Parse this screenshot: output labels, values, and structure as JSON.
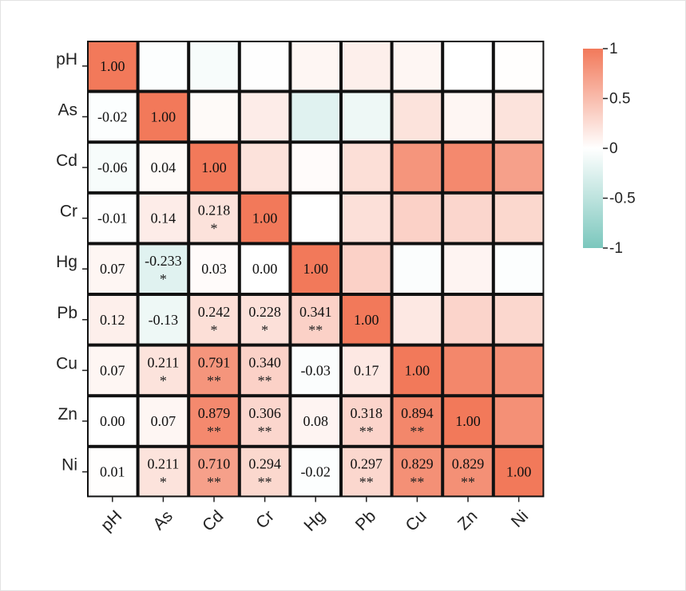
{
  "chart_data": {
    "type": "heatmap",
    "variables": [
      "pH",
      "As",
      "Cd",
      "Cr",
      "Hg",
      "Pb",
      "Cu",
      "Zn",
      "Ni"
    ],
    "matrix": [
      [
        1.0,
        -0.02,
        -0.06,
        -0.01,
        0.07,
        0.12,
        0.07,
        0.0,
        0.01
      ],
      [
        -0.02,
        1.0,
        0.04,
        0.14,
        -0.233,
        -0.13,
        0.211,
        0.07,
        0.211
      ],
      [
        -0.06,
        0.04,
        1.0,
        0.218,
        0.03,
        0.242,
        0.791,
        0.879,
        0.71
      ],
      [
        -0.01,
        0.14,
        0.218,
        1.0,
        0.0,
        0.228,
        0.34,
        0.306,
        0.294
      ],
      [
        0.07,
        -0.233,
        0.03,
        0.0,
        1.0,
        0.341,
        -0.03,
        0.08,
        -0.02
      ],
      [
        0.12,
        -0.13,
        0.242,
        0.228,
        0.341,
        1.0,
        0.17,
        0.318,
        0.297
      ],
      [
        0.07,
        0.211,
        0.791,
        0.34,
        -0.03,
        0.17,
        1.0,
        0.894,
        0.829
      ],
      [
        0.0,
        0.07,
        0.879,
        0.306,
        0.08,
        0.318,
        0.894,
        1.0,
        0.829
      ],
      [
        0.01,
        0.211,
        0.71,
        0.294,
        -0.02,
        0.297,
        0.829,
        0.829,
        1.0
      ]
    ],
    "lower_labels": [
      [
        {
          "t": "1.00"
        }
      ],
      [
        {
          "t": "-0.02"
        },
        {
          "t": "1.00"
        }
      ],
      [
        {
          "t": "-0.06"
        },
        {
          "t": "0.04"
        },
        {
          "t": "1.00"
        }
      ],
      [
        {
          "t": "-0.01"
        },
        {
          "t": "0.14"
        },
        {
          "t": "0.218",
          "s": "*"
        },
        {
          "t": "1.00"
        }
      ],
      [
        {
          "t": "0.07"
        },
        {
          "t": "-0.233",
          "s": "*"
        },
        {
          "t": "0.03"
        },
        {
          "t": "0.00"
        },
        {
          "t": "1.00"
        }
      ],
      [
        {
          "t": "0.12"
        },
        {
          "t": "-0.13"
        },
        {
          "t": "0.242",
          "s": "*"
        },
        {
          "t": "0.228",
          "s": "*"
        },
        {
          "t": "0.341",
          "s": "**"
        },
        {
          "t": "1.00"
        }
      ],
      [
        {
          "t": "0.07"
        },
        {
          "t": "0.211",
          "s": "*"
        },
        {
          "t": "0.791",
          "s": "**"
        },
        {
          "t": "0.340",
          "s": "**"
        },
        {
          "t": "-0.03"
        },
        {
          "t": "0.17"
        },
        {
          "t": "1.00"
        }
      ],
      [
        {
          "t": "0.00"
        },
        {
          "t": "0.07"
        },
        {
          "t": "0.879",
          "s": "**"
        },
        {
          "t": "0.306",
          "s": "**"
        },
        {
          "t": "0.08"
        },
        {
          "t": "0.318",
          "s": "**"
        },
        {
          "t": "0.894",
          "s": "**"
        },
        {
          "t": "1.00"
        }
      ],
      [
        {
          "t": "0.01"
        },
        {
          "t": "0.211",
          "s": "*"
        },
        {
          "t": "0.710",
          "s": "**"
        },
        {
          "t": "0.294",
          "s": "**"
        },
        {
          "t": "-0.02"
        },
        {
          "t": "0.297",
          "s": "**"
        },
        {
          "t": "0.829",
          "s": "**"
        },
        {
          "t": "0.829",
          "s": "**"
        },
        {
          "t": "1.00"
        }
      ]
    ],
    "colorbar": {
      "min": -1,
      "max": 1,
      "ticks": [
        {
          "value": 1,
          "label": "1"
        },
        {
          "value": 0.5,
          "label": "0.5"
        },
        {
          "value": 0,
          "label": "0"
        },
        {
          "value": -0.5,
          "label": "-0.5"
        },
        {
          "value": -1,
          "label": "-1"
        }
      ],
      "position": "right"
    },
    "colors": {
      "positive": "#f2795a",
      "zero": "#ffffff",
      "negative": "#7bc7bd",
      "border": "#111111"
    }
  }
}
